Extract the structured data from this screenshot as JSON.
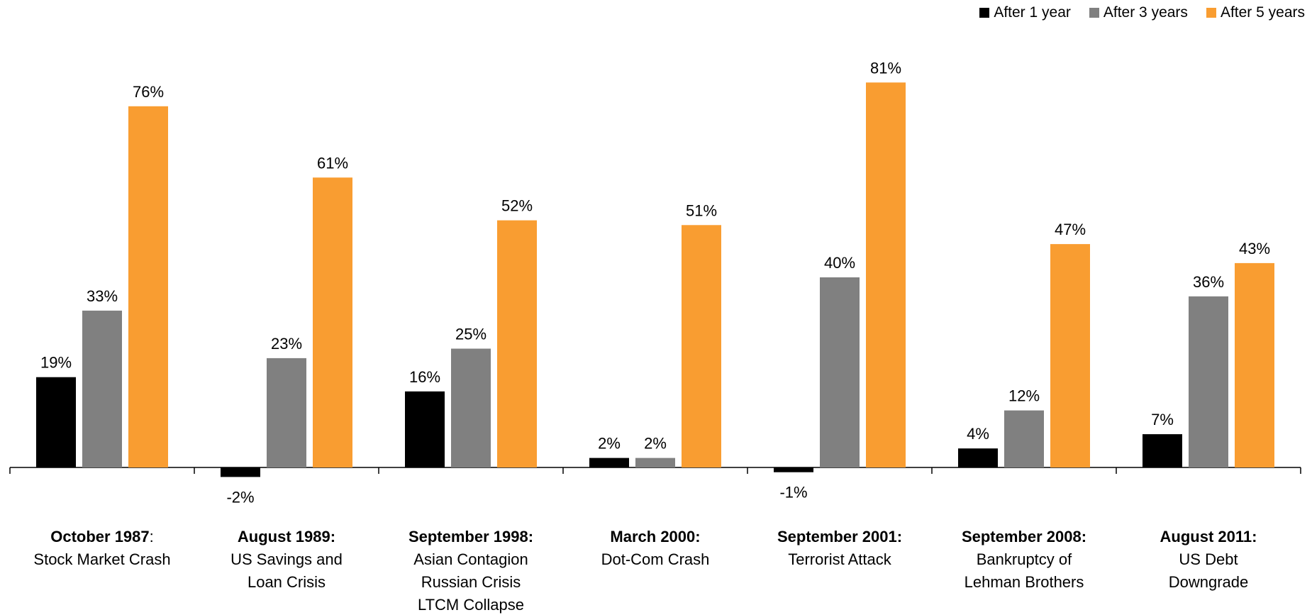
{
  "chart_data": {
    "type": "bar",
    "categories": [
      {
        "lines": [
          {
            "bold": "October 1987",
            "normal": ":"
          },
          {
            "normal": "Stock Market Crash"
          }
        ]
      },
      {
        "lines": [
          {
            "bold": "August 1989:"
          },
          {
            "normal": "US Savings and"
          },
          {
            "normal": "Loan Crisis"
          }
        ]
      },
      {
        "lines": [
          {
            "bold": "September 1998:"
          },
          {
            "normal": "Asian Contagion"
          },
          {
            "normal": "Russian Crisis"
          },
          {
            "normal": "LTCM Collapse"
          }
        ]
      },
      {
        "lines": [
          {
            "bold": "March 2000:"
          },
          {
            "normal": "Dot-Com Crash"
          }
        ]
      },
      {
        "lines": [
          {
            "bold": "September 2001:"
          },
          {
            "normal": "Terrorist Attack"
          }
        ]
      },
      {
        "lines": [
          {
            "bold": "September 2008:"
          },
          {
            "normal": "Bankruptcy of"
          },
          {
            "normal": "Lehman Brothers"
          }
        ]
      },
      {
        "lines": [
          {
            "bold": "August 2011:"
          },
          {
            "normal": "US Debt"
          },
          {
            "normal": "Downgrade"
          }
        ]
      }
    ],
    "series": [
      {
        "name": "After 1 year",
        "color": "#000000",
        "values": [
          19,
          -2,
          16,
          2,
          -1,
          4,
          7
        ],
        "labels": [
          "19%",
          "-2%",
          "16%",
          "2%",
          "-1%",
          "4%",
          "7%"
        ]
      },
      {
        "name": "After 3 years",
        "color": "#808080",
        "values": [
          33,
          23,
          25,
          2,
          40,
          12,
          36
        ],
        "labels": [
          "33%",
          "23%",
          "25%",
          "2%",
          "40%",
          "12%",
          "36%"
        ]
      },
      {
        "name": "After 5 years",
        "color": "#F99D31",
        "values": [
          76,
          61,
          52,
          51,
          81,
          47,
          43
        ],
        "labels": [
          "76%",
          "61%",
          "52%",
          "51%",
          "81%",
          "47%",
          "43%"
        ]
      }
    ],
    "legend_position": "top-right",
    "grid": false,
    "ylim": [
      -5,
      85
    ]
  }
}
